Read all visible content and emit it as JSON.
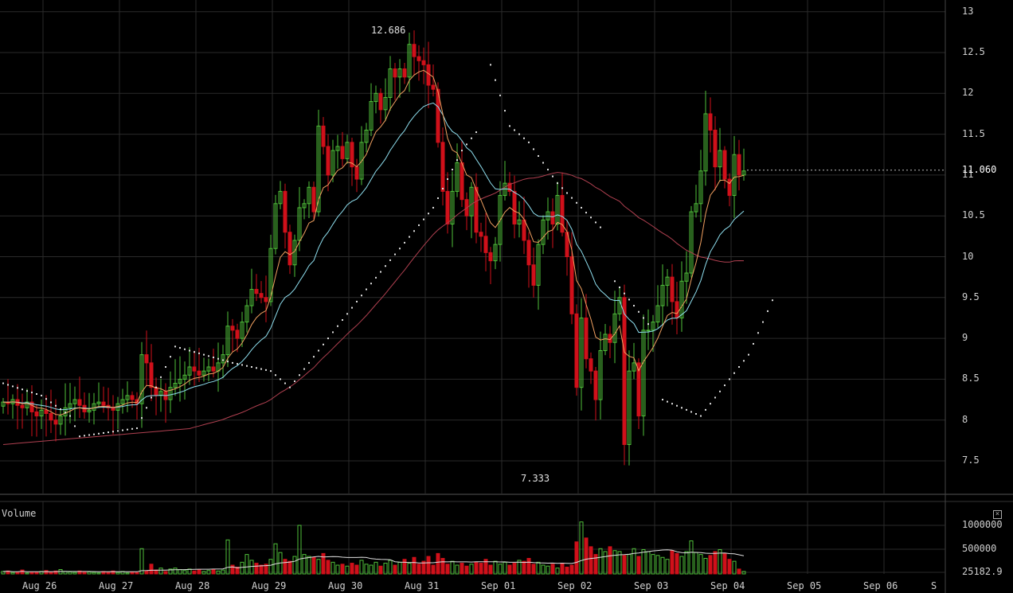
{
  "chart_data": {
    "type": "candlestick",
    "price_axis": {
      "ticks": [
        "13",
        "12.5",
        "12",
        "11.5",
        "11",
        "10.5",
        "10",
        "9.5",
        "9",
        "8.5",
        "8",
        "7.5"
      ]
    },
    "volume_axis": {
      "label": "Volume",
      "ticks": [
        "1000000",
        "500000",
        "25182.9"
      ]
    },
    "x_ticks": [
      "Aug 26",
      "Aug 27",
      "Aug 28",
      "Aug 29",
      "Aug 30",
      "Aug 31",
      "Sep 01",
      "Sep 02",
      "Sep 03",
      "Sep 04",
      "Sep 05",
      "Sep 06",
      "S"
    ],
    "annotations": {
      "high": "12.686",
      "low": "7.333",
      "last": "11.060"
    },
    "close_icon": "close-box-icon",
    "colors": {
      "up": "#4fbf3a",
      "down": "#d0101a",
      "grid": "#2a2a2a",
      "ema_fast": "#f0a060",
      "ema_slow": "#8fe0f0",
      "sma_long": "#b04050",
      "sar": "#e0e0e0",
      "vol_avg": "#e0e0e0"
    },
    "close_series": [
      8.22,
      8.2,
      8.25,
      8.18,
      8.15,
      8.22,
      8.1,
      8.05,
      8.12,
      8.08,
      8.0,
      7.95,
      8.05,
      8.15,
      8.2,
      8.25,
      8.18,
      8.1,
      8.12,
      8.2,
      8.22,
      8.18,
      8.15,
      8.12,
      8.2,
      8.25,
      8.3,
      8.25,
      8.2,
      8.8,
      8.7,
      8.4,
      8.3,
      8.35,
      8.25,
      8.4,
      8.45,
      8.5,
      8.55,
      8.65,
      8.6,
      8.55,
      8.6,
      8.65,
      8.6,
      8.7,
      8.8,
      9.15,
      9.1,
      9.0,
      9.2,
      9.4,
      9.6,
      9.55,
      9.5,
      9.45,
      10.1,
      10.65,
      10.8,
      10.3,
      9.9,
      10.2,
      10.6,
      10.65,
      10.85,
      10.55,
      11.6,
      11.35,
      11.0,
      11.3,
      11.35,
      11.2,
      11.4,
      11.1,
      10.95,
      11.4,
      11.55,
      11.9,
      12.0,
      11.8,
      11.95,
      12.3,
      12.2,
      12.3,
      12.2,
      12.6,
      12.45,
      12.4,
      12.35,
      12.1,
      12.05,
      11.4,
      10.8,
      10.4,
      10.8,
      11.15,
      10.7,
      10.5,
      10.85,
      10.3,
      10.25,
      10.05,
      9.95,
      10.15,
      10.75,
      10.9,
      10.8,
      10.4,
      10.45,
      10.2,
      9.9,
      9.65,
      10.15,
      10.45,
      10.55,
      10.4,
      10.75,
      10.3,
      10.0,
      9.3,
      8.4,
      9.25,
      8.75,
      8.6,
      8.25,
      8.85,
      9.05,
      8.95,
      9.3,
      9.5,
      7.7,
      8.6,
      8.7,
      8.05,
      9.1,
      9.1,
      9.2,
      9.4,
      9.65,
      9.75,
      9.45,
      9.25,
      9.7,
      9.8,
      10.55,
      10.65,
      11.05,
      11.75,
      11.55,
      11.1,
      11.3,
      10.95,
      10.75,
      11.25,
      11.0,
      11.05
    ],
    "sar_points": [
      [
        0,
        8.45
      ],
      [
        8,
        8.3
      ],
      [
        14,
        8.05
      ],
      [
        16,
        7.8
      ],
      [
        28,
        7.9
      ],
      [
        36,
        8.9
      ],
      [
        48,
        8.7
      ],
      [
        56,
        8.6
      ],
      [
        60,
        8.4
      ],
      [
        76,
        9.6
      ],
      [
        90,
        10.6
      ],
      [
        96,
        11.3
      ],
      [
        100,
        11.6
      ],
      [
        102,
        12.35
      ],
      [
        106,
        11.6
      ],
      [
        110,
        11.4
      ],
      [
        116,
        10.9
      ],
      [
        126,
        10.3
      ],
      [
        128,
        9.7
      ],
      [
        132,
        9.4
      ],
      [
        136,
        9.1
      ],
      [
        138,
        8.25
      ],
      [
        146,
        8.05
      ],
      [
        156,
        8.8
      ],
      [
        162,
        9.6
      ]
    ],
    "volumes": [
      0.05,
      0.06,
      0.03,
      0.04,
      0.08,
      0.02,
      0.03,
      0.04,
      0.05,
      0.07,
      0.04,
      0.06,
      0.09,
      0.05,
      0.04,
      0.03,
      0.06,
      0.05,
      0.04,
      0.03,
      0.02,
      0.05,
      0.04,
      0.06,
      0.03,
      0.05,
      0.02,
      0.04,
      0.03,
      0.52,
      0.06,
      0.2,
      0.08,
      0.12,
      0.05,
      0.1,
      0.12,
      0.09,
      0.07,
      0.1,
      0.06,
      0.08,
      0.05,
      0.07,
      0.09,
      0.06,
      0.08,
      0.7,
      0.18,
      0.14,
      0.24,
      0.4,
      0.28,
      0.22,
      0.18,
      0.2,
      0.3,
      0.62,
      0.44,
      0.3,
      0.26,
      0.36,
      1.0,
      0.4,
      0.36,
      0.34,
      0.3,
      0.42,
      0.28,
      0.24,
      0.18,
      0.2,
      0.16,
      0.22,
      0.18,
      0.28,
      0.2,
      0.18,
      0.24,
      0.16,
      0.22,
      0.28,
      0.18,
      0.24,
      0.3,
      0.22,
      0.34,
      0.2,
      0.26,
      0.36,
      0.18,
      0.42,
      0.32,
      0.2,
      0.26,
      0.18,
      0.22,
      0.16,
      0.2,
      0.24,
      0.22,
      0.3,
      0.18,
      0.26,
      0.2,
      0.24,
      0.18,
      0.22,
      0.28,
      0.26,
      0.32,
      0.2,
      0.24,
      0.18,
      0.16,
      0.2,
      0.12,
      0.22,
      0.14,
      0.18,
      0.66,
      1.07,
      0.74,
      0.56,
      0.4,
      0.52,
      0.46,
      0.56,
      0.48,
      0.46,
      0.38,
      0.4,
      0.52,
      0.36,
      0.5,
      0.46,
      0.4,
      0.38,
      0.34,
      0.3,
      0.48,
      0.42,
      0.36,
      0.46,
      0.68,
      0.44,
      0.4,
      0.32,
      0.38,
      0.46,
      0.5,
      0.42,
      0.3,
      0.26,
      0.1,
      0.05
    ]
  }
}
